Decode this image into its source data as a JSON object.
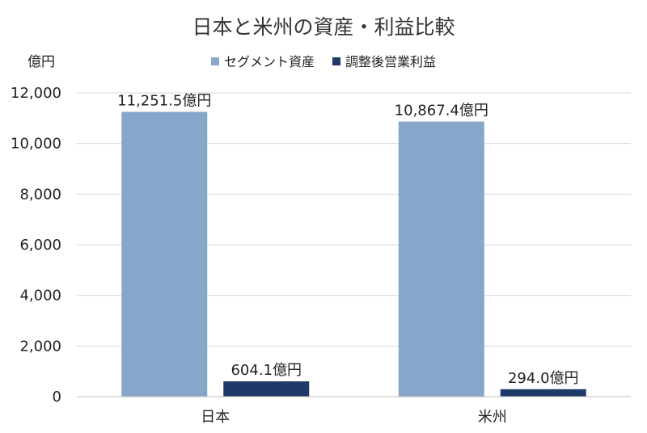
{
  "chart_data": {
    "type": "bar",
    "title": "日本と米州の資産・利益比較",
    "unit_label": "億円",
    "categories": [
      "日本",
      "米州"
    ],
    "series": [
      {
        "name": "セグメント資産",
        "values": [
          11251.5,
          10867.4
        ],
        "labels": [
          "11,251.5億円",
          "10,867.4億円"
        ],
        "color": "#86a7ca"
      },
      {
        "name": "調整後営業利益",
        "values": [
          604.1,
          294.0
        ],
        "labels": [
          "604.1億円",
          "294.0億円"
        ],
        "color": "#1f3a68"
      }
    ],
    "ylim": [
      0,
      12000
    ],
    "yticks": [
      0,
      2000,
      4000,
      6000,
      8000,
      10000,
      12000
    ],
    "ytick_labels": [
      "0",
      "2,000",
      "4,000",
      "6,000",
      "8,000",
      "10,000",
      "12,000"
    ],
    "legend_position": "top-center",
    "grid": true
  }
}
